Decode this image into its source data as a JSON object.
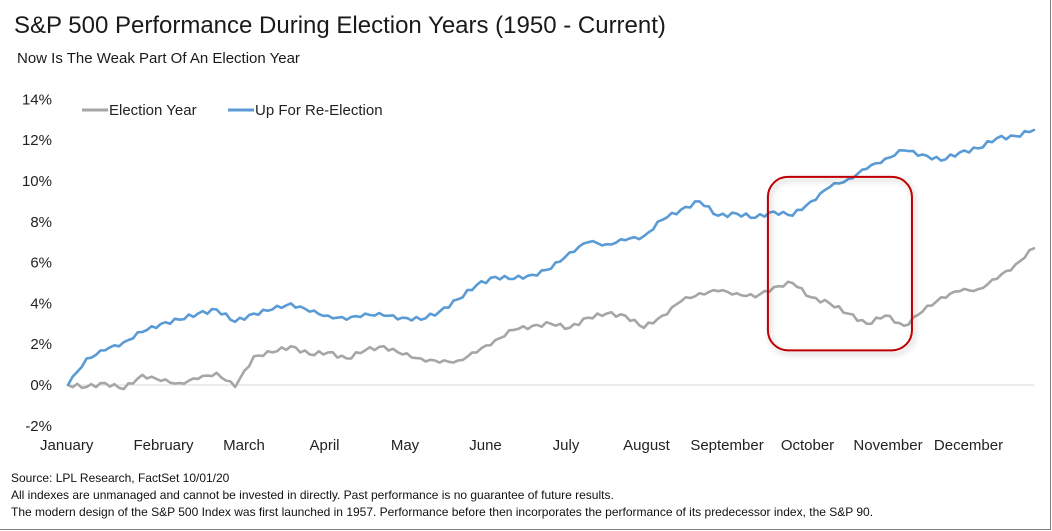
{
  "notes": {
    "source": "Source:  LPL Research,  FactSet 10/01/20",
    "disclaimer": "All indexes are unmanaged and cannot be invested in directly. Past performance is no guarantee of future results.",
    "history": "The modern design of the S&P 500  Index was first launched in 1957.  Performance before then incorporates the performance of its predecessor index, the S&P 90."
  },
  "chart_data": {
    "type": "line",
    "title": "S&P 500 Performance During Election Years (1950 - Current)",
    "subtitle": "Now Is The Weak Part Of An Election Year",
    "ylim": [
      -2,
      14
    ],
    "y_ticks": [
      -2,
      0,
      2,
      4,
      6,
      8,
      10,
      12,
      14
    ],
    "y_tick_labels": [
      "-2%",
      "0%",
      "2%",
      "4%",
      "6%",
      "8%",
      "10%",
      "12%",
      "14%"
    ],
    "x_tick_labels": [
      "January",
      "February",
      "March",
      "April",
      "May",
      "June",
      "July",
      "August",
      "September",
      "October",
      "November",
      "December"
    ],
    "grid": false,
    "legend_position": "top-left",
    "x_unit": "trading week of year",
    "x": [
      0,
      1,
      2,
      3,
      4,
      5,
      6,
      7,
      8,
      9,
      10,
      11,
      12,
      13,
      14,
      15,
      16,
      17,
      18,
      19,
      20,
      21,
      22,
      23,
      24,
      25,
      26,
      27,
      28,
      29,
      30,
      31,
      32,
      33,
      34,
      35,
      36,
      37,
      38,
      39,
      40,
      41,
      42,
      43,
      44,
      45,
      46,
      47,
      48,
      49,
      50,
      51,
      52
    ],
    "series": [
      {
        "name": "Election Year",
        "color": "#a6a6a6",
        "values": [
          0.0,
          -0.1,
          0.1,
          -0.2,
          0.5,
          0.2,
          0.1,
          0.3,
          0.6,
          -0.1,
          1.4,
          1.6,
          1.9,
          1.5,
          1.6,
          1.3,
          1.7,
          1.9,
          1.5,
          1.3,
          1.1,
          1.2,
          1.6,
          2.2,
          2.7,
          2.9,
          3.0,
          2.8,
          3.3,
          3.5,
          3.4,
          2.8,
          3.4,
          4.1,
          4.5,
          4.6,
          4.5,
          4.3,
          4.8,
          5.0,
          4.3,
          4.0,
          3.5,
          3.0,
          3.4,
          2.9,
          3.6,
          4.3,
          4.6,
          4.7,
          5.2,
          5.9,
          6.7
        ]
      },
      {
        "name": "Up For Re-Election",
        "color": "#5b9bd5",
        "values": [
          0.0,
          1.3,
          1.7,
          2.1,
          2.6,
          3.0,
          3.2,
          3.5,
          3.7,
          3.1,
          3.5,
          3.7,
          4.0,
          3.6,
          3.4,
          3.2,
          3.5,
          3.4,
          3.3,
          3.2,
          3.6,
          4.2,
          4.9,
          5.3,
          5.2,
          5.4,
          5.7,
          6.5,
          7.0,
          6.9,
          7.1,
          7.3,
          8.1,
          8.6,
          9.0,
          8.3,
          8.4,
          8.2,
          8.5,
          8.3,
          9.0,
          9.7,
          10.1,
          10.6,
          11.1,
          11.5,
          11.3,
          11.0,
          11.4,
          11.6,
          12.1,
          12.2,
          12.5
        ]
      }
    ],
    "highlight": {
      "x_range": [
        38,
        45
      ],
      "y_range": [
        1.7,
        10.2
      ],
      "color": "#c00000"
    }
  }
}
